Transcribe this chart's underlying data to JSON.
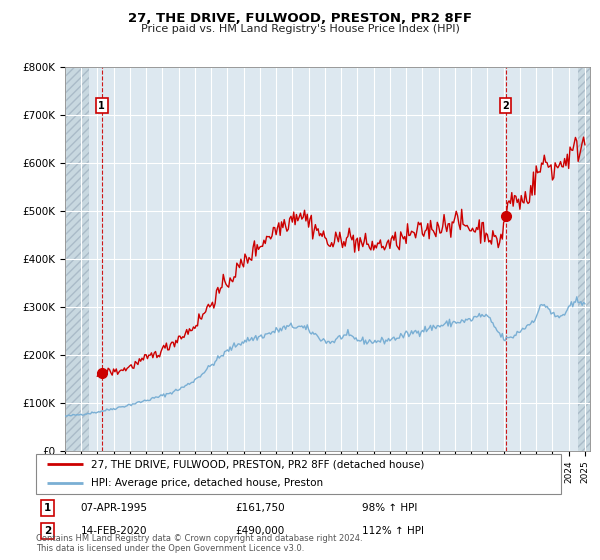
{
  "title": "27, THE DRIVE, FULWOOD, PRESTON, PR2 8FF",
  "subtitle": "Price paid vs. HM Land Registry's House Price Index (HPI)",
  "ylim": [
    0,
    800000
  ],
  "yticks": [
    0,
    100000,
    200000,
    300000,
    400000,
    500000,
    600000,
    700000,
    800000
  ],
  "ytick_labels": [
    "£0",
    "£100K",
    "£200K",
    "£300K",
    "£400K",
    "£500K",
    "£600K",
    "£700K",
    "£800K"
  ],
  "plot_bg_color": "#dde8f0",
  "grid_color": "#ffffff",
  "red_line_color": "#cc0000",
  "blue_line_color": "#7aafd4",
  "t1_x": 1995.27,
  "t1_y": 161750,
  "t2_x": 2020.12,
  "t2_y": 490000,
  "legend_line1": "27, THE DRIVE, FULWOOD, PRESTON, PR2 8FF (detached house)",
  "legend_line2": "HPI: Average price, detached house, Preston",
  "footer": "Contains HM Land Registry data © Crown copyright and database right 2024.\nThis data is licensed under the Open Government Licence v3.0.",
  "t1_date": "07-APR-1995",
  "t1_price": "£161,750",
  "t1_hpi": "98% ↑ HPI",
  "t2_date": "14-FEB-2020",
  "t2_price": "£490,000",
  "t2_hpi": "112% ↑ HPI",
  "xmin": 1993.0,
  "xmax": 2025.3,
  "hatch_end": 1994.5,
  "hatch_start2": 2024.6
}
